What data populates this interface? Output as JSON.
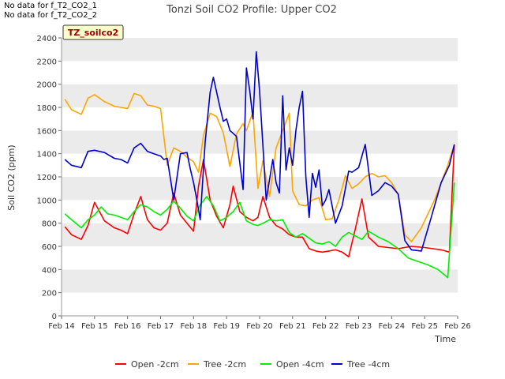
{
  "notes": [
    "No data for f_T2_CO2_1",
    "No data for f_T2_CO2_2"
  ],
  "chart_data": {
    "type": "line",
    "title": "Tonzi Soil CO2 Profile: Upper CO2",
    "xlabel": "Time",
    "ylabel": "Soil CO2 (ppm)",
    "tag_label": "TZ_soilco2",
    "colors": {
      "red": "#ff0000",
      "orange": "#ffa500",
      "green": "#00ee00",
      "blue": "#0000cc",
      "tag_fill": "#ffffcc",
      "tag_text": "#990000",
      "band": "#ebebeb"
    },
    "xlim": [
      14,
      26
    ],
    "ylim": [
      0,
      2400
    ],
    "x_unit": "day of February",
    "x_ticks": [
      {
        "value": 14,
        "label": "Feb 14"
      },
      {
        "value": 15,
        "label": "Feb 15"
      },
      {
        "value": 16,
        "label": "Feb 16"
      },
      {
        "value": 17,
        "label": "Feb 17"
      },
      {
        "value": 18,
        "label": "Feb 18"
      },
      {
        "value": 19,
        "label": "Feb 19"
      },
      {
        "value": 20,
        "label": "Feb 20"
      },
      {
        "value": 21,
        "label": "Feb 21"
      },
      {
        "value": 22,
        "label": "Feb 22"
      },
      {
        "value": 23,
        "label": "Feb 23"
      },
      {
        "value": 24,
        "label": "Feb 24"
      },
      {
        "value": 25,
        "label": "Feb 25"
      },
      {
        "value": 26,
        "label": "Feb 26"
      }
    ],
    "y_ticks": [
      0,
      200,
      400,
      600,
      800,
      1000,
      1200,
      1400,
      1600,
      1800,
      2000,
      2200,
      2400
    ],
    "series": [
      {
        "name": "Open -2cm",
        "color": "#ff0000",
        "x": [
          14.1,
          14.3,
          14.6,
          14.8,
          15.0,
          15.3,
          15.6,
          15.8,
          16.0,
          16.2,
          16.4,
          16.6,
          16.8,
          17.0,
          17.2,
          17.4,
          17.6,
          17.8,
          18.0,
          18.15,
          18.3,
          18.5,
          18.7,
          18.9,
          19.1,
          19.2,
          19.4,
          19.6,
          19.8,
          19.95,
          20.1,
          20.3,
          20.5,
          20.7,
          20.9,
          21.1,
          21.3,
          21.5,
          21.7,
          21.9,
          22.1,
          22.3,
          22.5,
          22.7,
          22.9,
          23.1,
          23.3,
          23.6,
          23.9,
          24.2,
          24.6,
          25.0,
          25.5,
          25.75,
          25.9
        ],
        "y": [
          770,
          700,
          660,
          780,
          980,
          820,
          760,
          740,
          710,
          880,
          1030,
          830,
          760,
          740,
          800,
          1060,
          870,
          800,
          730,
          1120,
          1350,
          1000,
          860,
          760,
          960,
          1120,
          900,
          850,
          820,
          850,
          1030,
          850,
          780,
          750,
          700,
          680,
          680,
          580,
          560,
          550,
          560,
          570,
          550,
          510,
          750,
          1010,
          680,
          600,
          590,
          580,
          600,
          590,
          570,
          550,
          1480
        ]
      },
      {
        "name": "Tree -2cm",
        "color": "#ffa500",
        "x": [
          14.1,
          14.3,
          14.6,
          14.8,
          15.0,
          15.3,
          15.6,
          15.8,
          16.0,
          16.2,
          16.4,
          16.6,
          16.8,
          17.0,
          17.2,
          17.4,
          17.6,
          17.8,
          18.0,
          18.15,
          18.3,
          18.5,
          18.7,
          18.9,
          19.1,
          19.3,
          19.5,
          19.6,
          19.8,
          19.95,
          20.1,
          20.3,
          20.5,
          20.7,
          20.9,
          21.0,
          21.2,
          21.4,
          21.6,
          21.8,
          22.0,
          22.2,
          22.4,
          22.6,
          22.8,
          23.0,
          23.2,
          23.4,
          23.6,
          23.8,
          24.0,
          24.2,
          24.4,
          24.6,
          24.9,
          25.3,
          25.7,
          25.9
        ],
        "y": [
          1870,
          1780,
          1740,
          1880,
          1910,
          1850,
          1810,
          1800,
          1790,
          1920,
          1900,
          1820,
          1810,
          1790,
          1300,
          1450,
          1420,
          1370,
          1330,
          1240,
          1560,
          1750,
          1720,
          1580,
          1290,
          1570,
          1660,
          1600,
          1760,
          1100,
          1340,
          1030,
          1450,
          1600,
          1750,
          1080,
          960,
          950,
          1000,
          1020,
          830,
          840,
          1000,
          1210,
          1100,
          1140,
          1200,
          1230,
          1200,
          1210,
          1150,
          1050,
          700,
          640,
          760,
          1000,
          1300,
          1480
        ]
      },
      {
        "name": "Open -4cm",
        "color": "#00ee00",
        "x": [
          14.1,
          14.3,
          14.6,
          14.8,
          15.0,
          15.2,
          15.4,
          15.6,
          15.8,
          16.0,
          16.2,
          16.4,
          16.6,
          16.8,
          17.0,
          17.2,
          17.4,
          17.6,
          17.8,
          18.0,
          18.2,
          18.4,
          18.6,
          18.8,
          19.0,
          19.2,
          19.4,
          19.6,
          19.8,
          19.95,
          20.1,
          20.3,
          20.5,
          20.7,
          20.9,
          21.1,
          21.3,
          21.5,
          21.7,
          21.9,
          22.1,
          22.3,
          22.5,
          22.7,
          22.9,
          23.1,
          23.3,
          23.6,
          23.9,
          24.2,
          24.5,
          24.8,
          25.1,
          25.4,
          25.7,
          25.9
        ],
        "y": [
          880,
          830,
          760,
          830,
          870,
          940,
          880,
          870,
          850,
          830,
          900,
          960,
          940,
          900,
          870,
          920,
          990,
          930,
          860,
          820,
          960,
          1030,
          950,
          820,
          850,
          900,
          980,
          820,
          790,
          780,
          800,
          830,
          820,
          830,
          720,
          680,
          710,
          670,
          630,
          620,
          640,
          600,
          680,
          720,
          690,
          660,
          730,
          680,
          640,
          580,
          500,
          470,
          440,
          400,
          330,
          1150
        ]
      },
      {
        "name": "Tree -4cm",
        "color": "#0000cc",
        "x": [
          14.1,
          14.3,
          14.6,
          14.8,
          15.0,
          15.3,
          15.6,
          15.8,
          16.0,
          16.2,
          16.4,
          16.6,
          16.8,
          17.0,
          17.1,
          17.2,
          17.4,
          17.6,
          17.8,
          17.9,
          18.0,
          18.1,
          18.2,
          18.35,
          18.5,
          18.6,
          18.8,
          18.9,
          19.0,
          19.1,
          19.3,
          19.5,
          19.6,
          19.7,
          19.8,
          19.9,
          20.0,
          20.2,
          20.4,
          20.5,
          20.6,
          20.7,
          20.8,
          20.9,
          21.0,
          21.1,
          21.2,
          21.3,
          21.4,
          21.5,
          21.6,
          21.7,
          21.8,
          21.9,
          22.0,
          22.1,
          22.3,
          22.5,
          22.7,
          22.8,
          23.0,
          23.2,
          23.4,
          23.6,
          23.8,
          24.0,
          24.2,
          24.4,
          24.6,
          24.9,
          25.2,
          25.5,
          25.75,
          25.9
        ],
        "y": [
          1350,
          1300,
          1280,
          1420,
          1430,
          1410,
          1360,
          1350,
          1320,
          1450,
          1490,
          1420,
          1400,
          1380,
          1350,
          1360,
          1000,
          1400,
          1410,
          1270,
          1150,
          1000,
          830,
          1500,
          1930,
          2060,
          1800,
          1680,
          1700,
          1600,
          1550,
          1090,
          2140,
          1950,
          1700,
          2280,
          1940,
          1000,
          1350,
          1150,
          1060,
          1900,
          1260,
          1450,
          1300,
          1600,
          1800,
          1940,
          1200,
          850,
          1230,
          1110,
          1260,
          950,
          1000,
          1090,
          800,
          950,
          1250,
          1240,
          1280,
          1480,
          1040,
          1080,
          1150,
          1120,
          1050,
          650,
          570,
          560,
          850,
          1150,
          1300,
          1480
        ]
      }
    ],
    "legend": {
      "placement": "bottom",
      "entries": [
        "Open -2cm",
        "Tree -2cm",
        "Open -4cm",
        "Tree -4cm"
      ]
    },
    "grid": "horizontal bands"
  }
}
